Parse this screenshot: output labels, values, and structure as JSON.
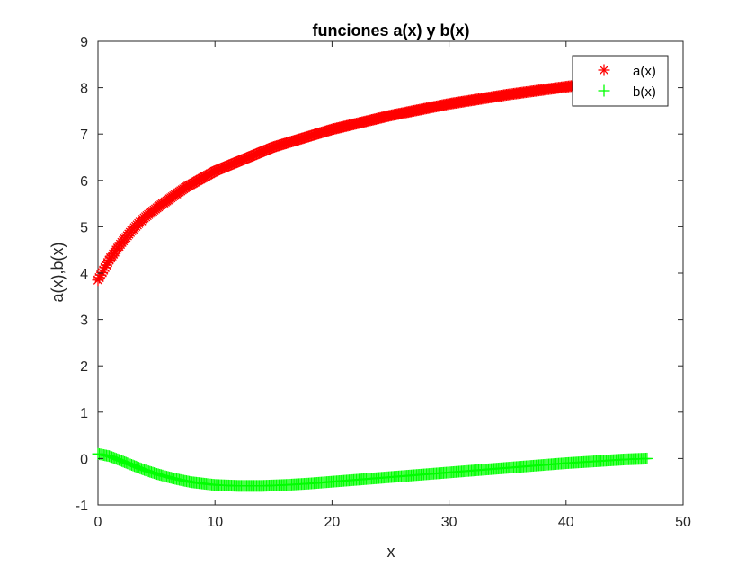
{
  "chart_data": {
    "type": "scatter",
    "title": "funciones a(x) y b(x)",
    "xlabel": "x",
    "ylabel": "a(x),b(x)",
    "xlim": [
      0,
      50
    ],
    "ylim": [
      -1,
      9
    ],
    "xticks": [
      0,
      10,
      20,
      30,
      40,
      50
    ],
    "yticks": [
      -1,
      0,
      1,
      2,
      3,
      4,
      5,
      6,
      7,
      8,
      9
    ],
    "grid": false,
    "legend": "top-right",
    "x_range": [
      0,
      47
    ],
    "series": [
      {
        "name": "a(x)",
        "marker": "asterisk",
        "color": "#ff0000",
        "x": [
          0,
          1,
          2,
          3,
          4,
          5,
          7.5,
          10,
          15,
          20,
          25,
          30,
          35,
          40,
          45,
          47
        ],
        "y": [
          3.85,
          4.3,
          4.65,
          4.95,
          5.2,
          5.4,
          5.85,
          6.2,
          6.72,
          7.1,
          7.4,
          7.65,
          7.85,
          8.02,
          8.18,
          8.22
        ]
      },
      {
        "name": "b(x)",
        "marker": "plus",
        "color": "#00ff00",
        "x": [
          0,
          1,
          2,
          3,
          4,
          5,
          6,
          7,
          8,
          10,
          12,
          14,
          16,
          18,
          20,
          25,
          30,
          35,
          40,
          45,
          47
        ],
        "y": [
          0.1,
          0.05,
          -0.05,
          -0.15,
          -0.25,
          -0.33,
          -0.4,
          -0.46,
          -0.51,
          -0.57,
          -0.59,
          -0.59,
          -0.57,
          -0.54,
          -0.5,
          -0.4,
          -0.3,
          -0.2,
          -0.1,
          -0.02,
          0.0
        ]
      }
    ]
  }
}
